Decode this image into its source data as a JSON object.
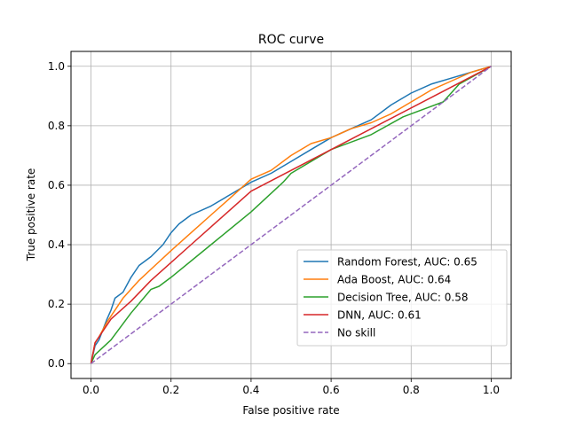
{
  "chart_data": {
    "type": "line",
    "title": "ROC curve",
    "xlabel": "False positive rate",
    "ylabel": "True positive rate",
    "xlim": [
      -0.05,
      1.05
    ],
    "ylim": [
      -0.05,
      1.05
    ],
    "xticks": [
      0.0,
      0.2,
      0.4,
      0.6,
      0.8,
      1.0
    ],
    "yticks": [
      0.0,
      0.2,
      0.4,
      0.6,
      0.8,
      1.0
    ],
    "xtick_labels": [
      "0.0",
      "0.2",
      "0.4",
      "0.6",
      "0.8",
      "1.0"
    ],
    "ytick_labels": [
      "0.0",
      "0.2",
      "0.4",
      "0.6",
      "0.8",
      "1.0"
    ],
    "grid": true,
    "legend_position": "lower-right",
    "series": [
      {
        "name": "Random Forest, AUC: 0.65",
        "color": "#1f77b4",
        "dashed": false,
        "x": [
          0,
          0.01,
          0.02,
          0.04,
          0.05,
          0.06,
          0.08,
          0.1,
          0.12,
          0.15,
          0.18,
          0.2,
          0.22,
          0.25,
          0.3,
          0.35,
          0.4,
          0.45,
          0.5,
          0.55,
          0.6,
          0.65,
          0.7,
          0.75,
          0.8,
          0.85,
          0.9,
          0.95,
          1.0
        ],
        "y": [
          0,
          0.06,
          0.08,
          0.15,
          0.18,
          0.22,
          0.24,
          0.29,
          0.33,
          0.36,
          0.4,
          0.44,
          0.47,
          0.5,
          0.53,
          0.57,
          0.61,
          0.64,
          0.68,
          0.72,
          0.76,
          0.79,
          0.82,
          0.87,
          0.91,
          0.94,
          0.96,
          0.98,
          1.0
        ]
      },
      {
        "name": "Ada Boost, AUC: 0.64",
        "color": "#ff7f0e",
        "dashed": false,
        "x": [
          0,
          0.01,
          0.02,
          0.04,
          0.08,
          0.12,
          0.16,
          0.2,
          0.25,
          0.3,
          0.35,
          0.4,
          0.45,
          0.5,
          0.55,
          0.6,
          0.65,
          0.7,
          0.75,
          0.8,
          0.85,
          0.9,
          0.95,
          1.0
        ],
        "y": [
          0,
          0.07,
          0.09,
          0.14,
          0.22,
          0.28,
          0.33,
          0.38,
          0.44,
          0.5,
          0.56,
          0.62,
          0.65,
          0.7,
          0.74,
          0.76,
          0.79,
          0.81,
          0.84,
          0.88,
          0.92,
          0.95,
          0.98,
          1.0
        ]
      },
      {
        "name": "Decision Tree, AUC: 0.58",
        "color": "#2ca02c",
        "dashed": false,
        "x": [
          0,
          0.01,
          0.05,
          0.1,
          0.15,
          0.17,
          0.2,
          0.3,
          0.4,
          0.48,
          0.5,
          0.6,
          0.7,
          0.78,
          0.84,
          0.88,
          0.92,
          1.0
        ],
        "y": [
          0,
          0.03,
          0.08,
          0.17,
          0.25,
          0.26,
          0.29,
          0.4,
          0.51,
          0.61,
          0.64,
          0.72,
          0.77,
          0.83,
          0.86,
          0.88,
          0.94,
          1.0
        ]
      },
      {
        "name": "DNN, AUC: 0.61",
        "color": "#d62728",
        "dashed": false,
        "x": [
          0,
          0.01,
          0.05,
          0.1,
          0.15,
          0.2,
          0.25,
          0.3,
          0.35,
          0.4,
          1.0
        ],
        "y": [
          0,
          0.07,
          0.15,
          0.21,
          0.28,
          0.34,
          0.4,
          0.46,
          0.52,
          0.58,
          1.0
        ]
      },
      {
        "name": "No skill",
        "color": "#9467bd",
        "dashed": true,
        "x": [
          0,
          1
        ],
        "y": [
          0,
          1
        ]
      }
    ]
  }
}
